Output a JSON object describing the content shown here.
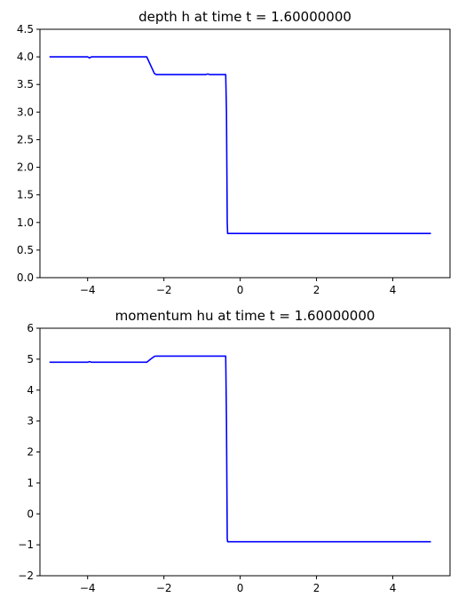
{
  "chart_data": [
    {
      "type": "line",
      "title": "depth h at time t =     1.60000000",
      "xlabel": "",
      "ylabel": "",
      "xlim": [
        -5.25,
        5.5
      ],
      "ylim": [
        0.0,
        4.5
      ],
      "xticks": [
        -4,
        -2,
        0,
        2,
        4
      ],
      "xtick_labels": [
        "−4",
        "−2",
        "0",
        "2",
        "4"
      ],
      "yticks": [
        0.0,
        0.5,
        1.0,
        1.5,
        2.0,
        2.5,
        3.0,
        3.5,
        4.0,
        4.5
      ],
      "ytick_labels": [
        "0.0",
        "0.5",
        "1.0",
        "1.5",
        "2.0",
        "2.5",
        "3.0",
        "3.5",
        "4.0",
        "4.5"
      ],
      "grid": false,
      "color": "#0000ff",
      "series": [
        {
          "x": [
            -5.0,
            -4.0,
            -3.95,
            -3.9,
            -2.45,
            -2.35,
            -2.25,
            -2.2,
            -0.9,
            -0.85,
            -0.8,
            -0.38,
            -0.36,
            -0.34,
            -0.33,
            5.0
          ],
          "y": [
            4.0,
            4.0,
            3.98,
            4.0,
            4.0,
            3.85,
            3.7,
            3.68,
            3.68,
            3.69,
            3.68,
            3.68,
            3.0,
            1.0,
            0.8,
            0.8
          ]
        }
      ]
    },
    {
      "type": "line",
      "title": "momentum hu at time t =     1.60000000",
      "xlabel": "",
      "ylabel": "",
      "xlim": [
        -5.25,
        5.5
      ],
      "ylim": [
        -2,
        6
      ],
      "xticks": [
        -4,
        -2,
        0,
        2,
        4
      ],
      "xtick_labels": [
        "−4",
        "−2",
        "0",
        "2",
        "4"
      ],
      "yticks": [
        -2,
        -1,
        0,
        1,
        2,
        3,
        4,
        5,
        6
      ],
      "ytick_labels": [
        "−2",
        "−1",
        "0",
        "1",
        "2",
        "3",
        "4",
        "5",
        "6"
      ],
      "grid": false,
      "color": "#0000ff",
      "series": [
        {
          "x": [
            -5.0,
            -4.0,
            -3.95,
            -3.9,
            -2.45,
            -2.35,
            -2.25,
            -2.2,
            -0.38,
            -0.36,
            -0.34,
            -0.33,
            5.0
          ],
          "y": [
            4.9,
            4.9,
            4.92,
            4.9,
            4.9,
            5.0,
            5.09,
            5.1,
            5.1,
            3.0,
            -0.8,
            -0.9,
            -0.9
          ]
        }
      ]
    }
  ]
}
